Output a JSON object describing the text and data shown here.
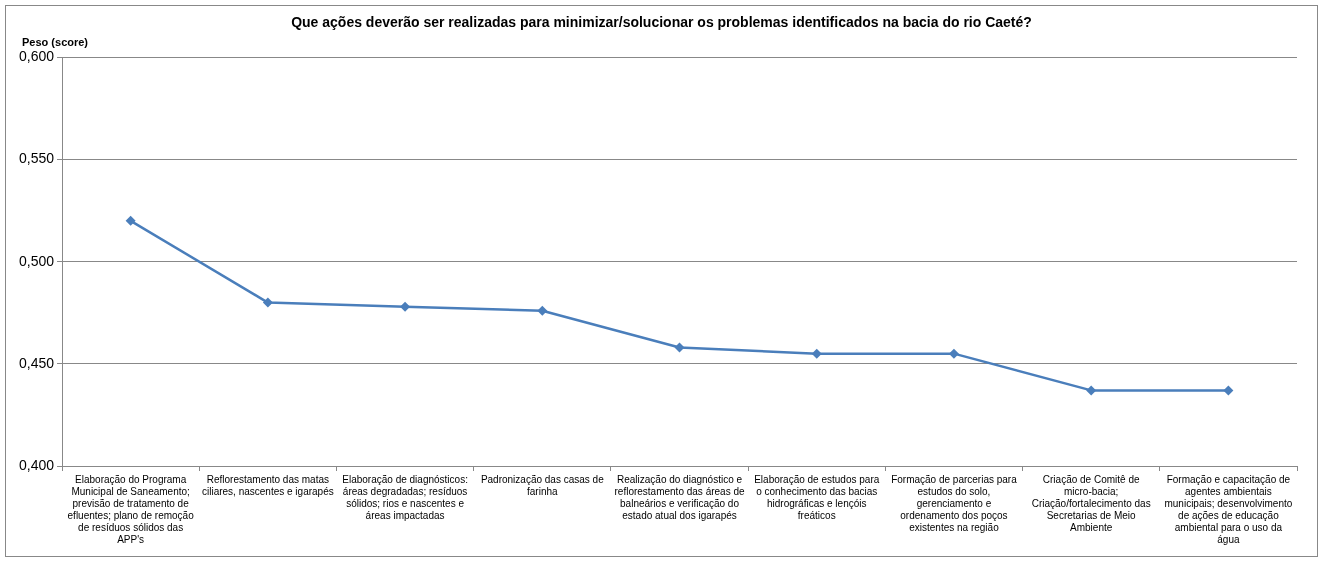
{
  "chart_data": {
    "type": "line",
    "title": "Que ações deverão ser realizadas para minimizar/solucionar os problemas identificados na bacia do rio Caeté?",
    "ylabel": "Peso (score)",
    "categories": [
      "Elaboração do Programa Municipal de Saneamento; previsão de tratamento de efluentes; plano de remoção de resíduos sólidos das APP's",
      "Reflorestamento das matas ciliares, nascentes e igarapés",
      "Elaboração de diagnósticos: áreas degradadas; resíduos sólidos; rios e nascentes e áreas impactadas",
      "Padronização das casas de farinha",
      "Realização do diagnóstico e reflorestamento das áreas de balneários e verificação do estado atual dos igarapés",
      "Elaboração de estudos para o conhecimento das bacias hidrográficas e lençóis freáticos",
      "Formação de parcerias para estudos do solo, gerenciamento e ordenamento dos poços existentes na região",
      "Criação de Comitê de micro-bacia; Criação/fortalecimento das Secretarias de Meio Ambiente",
      "Formação e capacitação de agentes ambientais municipais; desenvolvimento de ações de educação ambiental para o uso da água"
    ],
    "series": [
      {
        "color": "#4a7ebb",
        "values": [
          0.52,
          0.48,
          0.478,
          0.476,
          0.458,
          0.455,
          0.455,
          0.437,
          0.437
        ]
      }
    ],
    "ylim": [
      0.4,
      0.6
    ],
    "yticks": [
      {
        "value": 0.4,
        "label": "0,400"
      },
      {
        "value": 0.45,
        "label": "0,450"
      },
      {
        "value": 0.5,
        "label": "0,500"
      },
      {
        "value": 0.55,
        "label": "0,550"
      },
      {
        "value": 0.6,
        "label": "0,600"
      }
    ],
    "grid": "y",
    "legend": false,
    "marker": "diamond",
    "line_style": "solid"
  }
}
